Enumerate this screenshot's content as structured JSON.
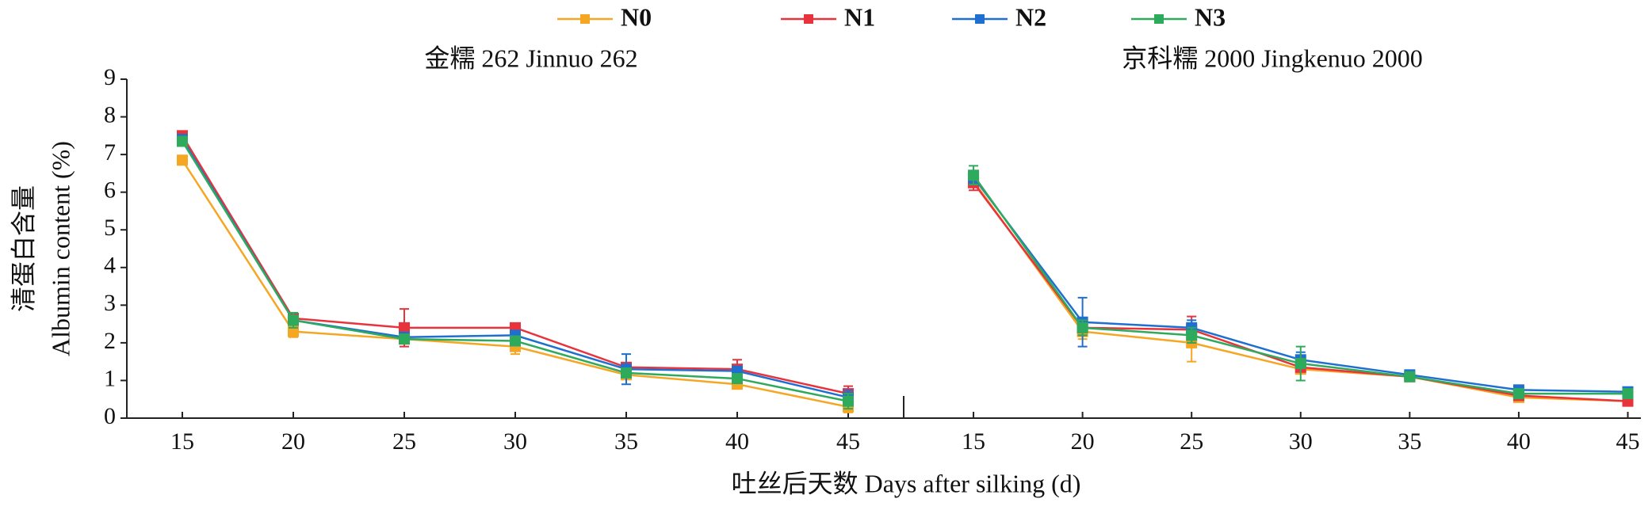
{
  "chart_data": [
    {
      "type": "line",
      "title": "金糯 262 Jinnuo 262",
      "ylabel": [
        "清蛋白含量",
        "Albumin content (%)"
      ],
      "xlabel": "吐丝后天数 Days after silking (d)",
      "x": [
        15,
        20,
        25,
        30,
        35,
        40,
        45
      ],
      "xlim": [
        12.5,
        47.5
      ],
      "xticks": [
        15,
        20,
        25,
        30,
        35,
        40,
        45
      ],
      "ylim": [
        0,
        9
      ],
      "yticks": [
        0,
        1,
        2,
        3,
        4,
        5,
        6,
        7,
        8,
        9
      ],
      "series": [
        {
          "name": "N0",
          "color": "#f5a623",
          "values": [
            6.85,
            2.3,
            2.1,
            1.9,
            1.15,
            0.9,
            0.3
          ],
          "errors": [
            0.1,
            0.15,
            0.1,
            0.2,
            0.1,
            0.05,
            0.15
          ]
        },
        {
          "name": "N1",
          "color": "#e8333c",
          "values": [
            7.5,
            2.65,
            2.4,
            2.4,
            1.35,
            1.3,
            0.65
          ],
          "errors": [
            0.1,
            0.1,
            0.5,
            0.05,
            0.1,
            0.25,
            0.2
          ]
        },
        {
          "name": "N2",
          "color": "#1f6fd1",
          "values": [
            7.4,
            2.6,
            2.15,
            2.2,
            1.3,
            1.25,
            0.55
          ],
          "errors": [
            0.1,
            0.1,
            0.1,
            0.1,
            0.4,
            0.1,
            0.2
          ]
        },
        {
          "name": "N3",
          "color": "#2eaa5c",
          "values": [
            7.35,
            2.6,
            2.1,
            2.05,
            1.2,
            1.05,
            0.45
          ],
          "errors": [
            0.1,
            0.2,
            0.1,
            0.1,
            0.1,
            0.1,
            0.2
          ]
        }
      ]
    },
    {
      "type": "line",
      "title": "京科糯 2000 Jingkenuo 2000",
      "x": [
        15,
        20,
        25,
        30,
        35,
        40,
        45
      ],
      "xlim": [
        11.8,
        45.6
      ],
      "xticks": [
        15,
        20,
        25,
        30,
        35,
        40,
        45
      ],
      "ylim": [
        0,
        9
      ],
      "series": [
        {
          "color": "#f5a623",
          "values": [
            6.3,
            2.3,
            2.0,
            1.3,
            1.1,
            0.55,
            0.45
          ],
          "errors": [
            0.1,
            0.2,
            0.5,
            0.1,
            0.05,
            0.1,
            0.05
          ]
        },
        {
          "color": "#e8333c",
          "values": [
            6.25,
            2.4,
            2.35,
            1.35,
            1.1,
            0.6,
            0.45
          ],
          "errors": [
            0.2,
            0.2,
            0.35,
            0.1,
            0.05,
            0.05,
            0.05
          ]
        },
        {
          "color": "#1f6fd1",
          "values": [
            6.4,
            2.55,
            2.4,
            1.55,
            1.15,
            0.75,
            0.7
          ],
          "errors": [
            0.15,
            0.65,
            0.2,
            0.2,
            0.05,
            0.05,
            0.1
          ]
        },
        {
          "color": "#2eaa5c",
          "values": [
            6.45,
            2.4,
            2.2,
            1.45,
            1.1,
            0.65,
            0.65
          ],
          "errors": [
            0.25,
            0.2,
            0.2,
            0.45,
            0.05,
            0.1,
            0.1
          ]
        }
      ]
    }
  ]
}
